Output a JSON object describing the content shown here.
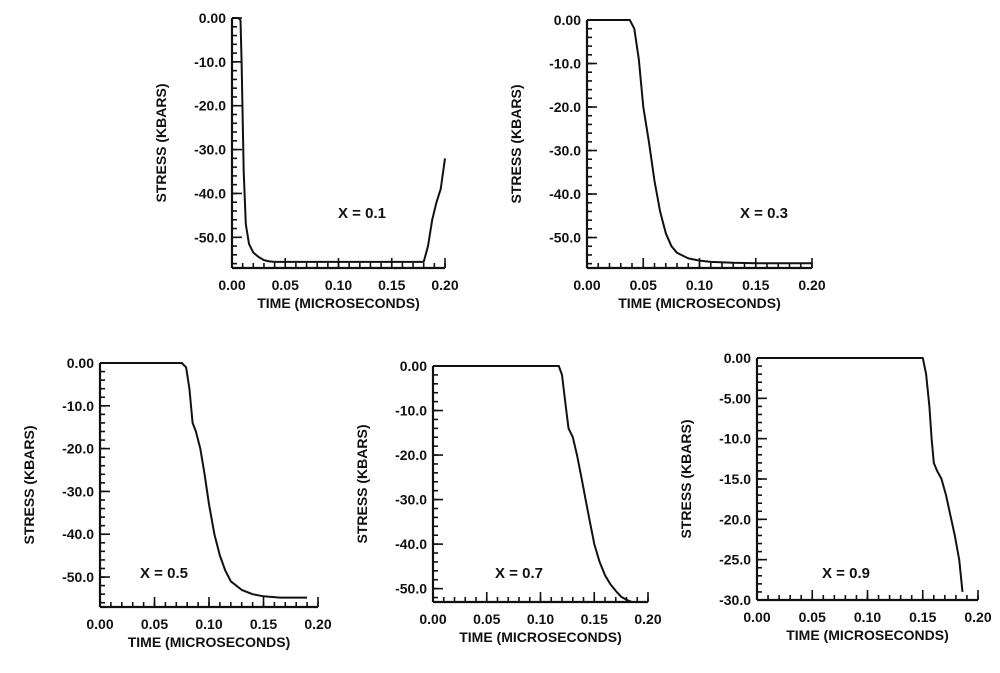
{
  "chart_data": [
    {
      "type": "line",
      "annotation": "X = 0.1",
      "xlabel": "TIME (MICROSECONDS)",
      "ylabel": "STRESS (KBARS)",
      "xlim": [
        0,
        0.2
      ],
      "ylim": [
        -57,
        0
      ],
      "xticks": [
        "0.00",
        "0.05",
        "0.10",
        "0.15",
        "0.20"
      ],
      "yticks": [
        "0.00",
        "-10.0",
        "-20.0",
        "-30.0",
        "-40.0",
        "-50.0"
      ],
      "x": [
        0.0,
        0.006,
        0.008,
        0.009,
        0.011,
        0.013,
        0.016,
        0.02,
        0.025,
        0.03,
        0.035,
        0.04,
        0.05,
        0.1,
        0.15,
        0.18,
        0.184,
        0.188,
        0.192,
        0.196,
        0.2
      ],
      "y": [
        0.0,
        0.0,
        -0.5,
        -10.0,
        -35.0,
        -47.0,
        -51.5,
        -53.5,
        -54.5,
        -55.2,
        -55.5,
        -55.6,
        -55.6,
        -55.6,
        -55.6,
        -55.6,
        -52.0,
        -46.0,
        -42.0,
        -39.0,
        -32.0
      ]
    },
    {
      "type": "line",
      "annotation": "X = 0.3",
      "xlabel": "TIME (MICROSECONDS)",
      "ylabel": "STRESS (KBARS)",
      "xlim": [
        0,
        0.2
      ],
      "ylim": [
        -57,
        0
      ],
      "xticks": [
        "0.00",
        "0.05",
        "0.10",
        "0.15",
        "0.20"
      ],
      "yticks": [
        "0.00",
        "-10.0",
        "-20.0",
        "-30.0",
        "-40.0",
        "-50.0"
      ],
      "x": [
        0.0,
        0.038,
        0.042,
        0.046,
        0.05,
        0.055,
        0.06,
        0.065,
        0.07,
        0.075,
        0.08,
        0.09,
        0.1,
        0.11,
        0.13,
        0.15,
        0.2
      ],
      "y": [
        0.0,
        0.0,
        -2.0,
        -9.0,
        -20.0,
        -28.0,
        -37.0,
        -44.0,
        -49.0,
        -52.0,
        -53.5,
        -54.8,
        -55.3,
        -55.6,
        -55.8,
        -55.9,
        -55.9
      ]
    },
    {
      "type": "line",
      "annotation": "X = 0.5",
      "xlabel": "TIME (MICROSECONDS)",
      "ylabel": "STRESS (KBARS)",
      "xlim": [
        0,
        0.2
      ],
      "ylim": [
        -57,
        0
      ],
      "xticks": [
        "0.00",
        "0.05",
        "0.10",
        "0.15",
        "0.20"
      ],
      "yticks": [
        "0.00",
        "-10.0",
        "-20.0",
        "-30.0",
        "-40.0",
        "-50.0"
      ],
      "x": [
        0.0,
        0.075,
        0.079,
        0.082,
        0.085,
        0.088,
        0.092,
        0.096,
        0.1,
        0.105,
        0.11,
        0.115,
        0.12,
        0.13,
        0.14,
        0.15,
        0.165,
        0.19
      ],
      "y": [
        0.0,
        0.0,
        -1.0,
        -6.0,
        -14.0,
        -16.0,
        -20.0,
        -26.0,
        -33.0,
        -40.0,
        -45.0,
        -48.5,
        -51.0,
        -53.0,
        -54.0,
        -54.5,
        -54.8,
        -54.8
      ]
    },
    {
      "type": "line",
      "annotation": "X = 0.7",
      "xlabel": "TIME (MICROSECONDS)",
      "ylabel": "STRESS (KBARS)",
      "xlim": [
        0,
        0.2
      ],
      "ylim": [
        -53,
        0
      ],
      "xticks": [
        "0.00",
        "0.05",
        "0.10",
        "0.15",
        "0.20"
      ],
      "yticks": [
        "0.00",
        "-10.0",
        "-20.0",
        "-30.0",
        "-40.0",
        "-50.0"
      ],
      "x": [
        0.0,
        0.117,
        0.12,
        0.123,
        0.126,
        0.13,
        0.134,
        0.138,
        0.142,
        0.146,
        0.15,
        0.155,
        0.16,
        0.165,
        0.17,
        0.175,
        0.18,
        0.185
      ],
      "y": [
        0.0,
        0.0,
        -2.0,
        -8.0,
        -14.0,
        -16.0,
        -20.0,
        -25.0,
        -30.0,
        -35.0,
        -40.0,
        -44.0,
        -47.0,
        -49.0,
        -50.5,
        -51.8,
        -52.5,
        -53.0
      ]
    },
    {
      "type": "line",
      "annotation": "X = 0.9",
      "xlabel": "TIME (MICROSECONDS)",
      "ylabel": "STRESS (KBARS)",
      "xlim": [
        0,
        0.2
      ],
      "ylim": [
        -30,
        0
      ],
      "xticks": [
        "0.00",
        "0.05",
        "0.10",
        "0.15",
        "0.20"
      ],
      "yticks": [
        "0.00",
        "-5.00",
        "-10.0",
        "-15.0",
        "-20.0",
        "-25.0",
        "-30.0"
      ],
      "x": [
        0.0,
        0.15,
        0.153,
        0.156,
        0.158,
        0.16,
        0.163,
        0.167,
        0.171,
        0.175,
        0.179,
        0.183,
        0.186
      ],
      "y": [
        0.0,
        0.0,
        -2.0,
        -6.0,
        -10.0,
        -13.0,
        -14.0,
        -15.0,
        -17.0,
        -19.5,
        -22.0,
        -25.0,
        -29.0
      ]
    }
  ]
}
